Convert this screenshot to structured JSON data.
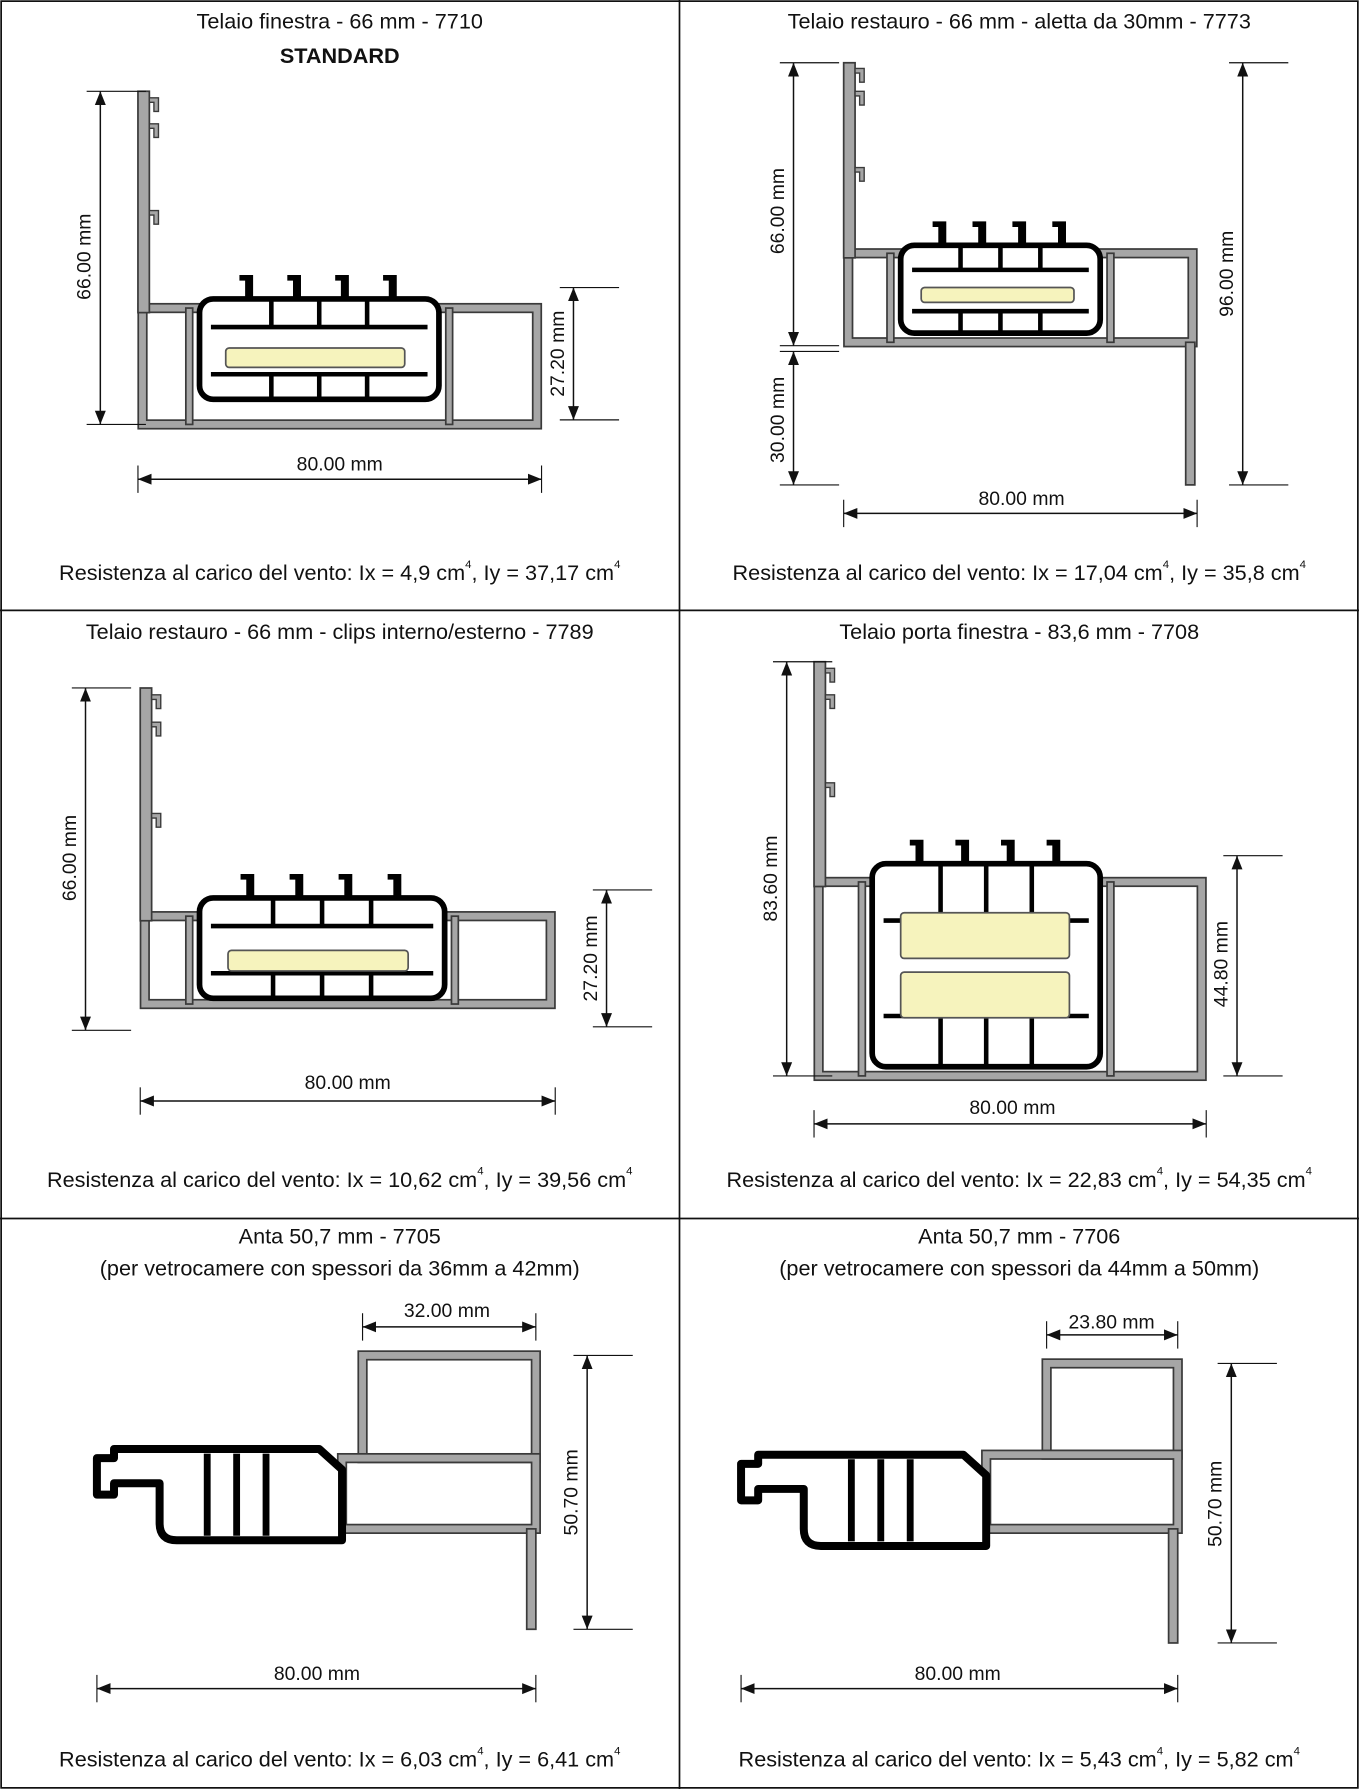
{
  "cells": [
    {
      "title": "Telaio finestra - 66 mm - 7710",
      "subtitle": "STANDARD",
      "dimensions": [
        "66.00 mm",
        "27.20 mm",
        "80.00 mm"
      ],
      "wind": [
        "Resistenza al carico del vento: Ix = 4,9 cm",
        "4",
        ", Iy = 37,17 cm",
        "4"
      ]
    },
    {
      "title": "Telaio restauro - 66 mm - aletta da 30mm - 7773",
      "dimensions": [
        "66.00 mm",
        "30.00 mm",
        "96.00 mm",
        "80.00 mm"
      ],
      "wind": [
        "Resistenza al carico del vento: Ix = 17,04 cm",
        "4",
        ", Iy = 35,8 cm",
        "4"
      ]
    },
    {
      "title": "Telaio restauro - 66 mm - clips interno/esterno - 7789",
      "dimensions": [
        "66.00 mm",
        "27.20 mm",
        "80.00 mm"
      ],
      "wind": [
        "Resistenza al carico del vento: Ix = 10,62 cm",
        "4",
        ", Iy = 39,56 cm",
        "4"
      ]
    },
    {
      "title": "Telaio porta finestra - 83,6 mm - 7708",
      "dimensions": [
        "83.60 mm",
        "44.80 mm",
        "80.00 mm"
      ],
      "wind": [
        "Resistenza al carico del vento: Ix = 22,83 cm",
        "4",
        ", Iy = 54,35 cm",
        "4"
      ]
    },
    {
      "title": "Anta 50,7 mm - 7705",
      "subtitle": "(per vetrocamere con spessori da 36mm a 42mm)",
      "dimensions": [
        "32.00 mm",
        "50.70 mm",
        "80.00 mm"
      ],
      "wind": [
        "Resistenza al carico del vento: Ix = 6,03 cm",
        "4",
        ", Iy = 6,41 cm",
        "4"
      ]
    },
    {
      "title": "Anta 50,7 mm - 7706",
      "subtitle": "(per vetrocamere con spessori da 44mm a 50mm)",
      "dimensions": [
        "23.80 mm",
        "50.70 mm",
        "80.00 mm"
      ],
      "wind": [
        "Resistenza al carico del vento: Ix = 5,43 cm",
        "4",
        ", Iy = 5,82 cm",
        "4"
      ]
    }
  ]
}
